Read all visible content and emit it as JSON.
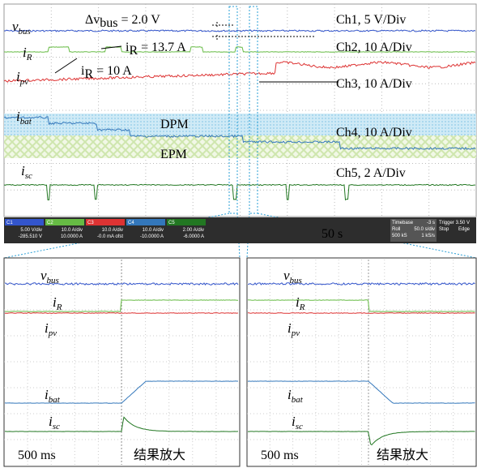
{
  "main": {
    "labels": [
      {
        "var": "v",
        "sub": "bus"
      },
      {
        "var": "i",
        "sub": "R"
      },
      {
        "var": "i",
        "sub": "pv"
      },
      {
        "var": "i",
        "sub": "bat"
      },
      {
        "var": "i",
        "sub": "sc"
      }
    ],
    "delta": {
      "pre": "Δ",
      "var": "v",
      "sub": "bus",
      "rest": " = 2.0 V"
    },
    "ir_high": {
      "var": "i",
      "sub": "R",
      "rest": " = 13.7 A"
    },
    "ir_low": {
      "var": "i",
      "sub": "R",
      "rest": " = 10 A"
    },
    "channels": [
      "Ch1, 5 V/Div",
      "Ch2, 10 A/Div",
      "Ch3, 10 A/Div",
      "Ch4, 10 A/Div",
      "Ch5, 2 A/Div"
    ],
    "dpm": "DPM",
    "epm": "EPM",
    "time": "50 s"
  },
  "status": {
    "channels": [
      {
        "name": "C1",
        "scale": "5.00 V/div",
        "offset": "-285.510 V"
      },
      {
        "name": "C2",
        "scale": "10.0 A/div",
        "offset": "10.0000 A"
      },
      {
        "name": "C3",
        "scale": "10.0 A/div",
        "offset": "-0.0 mA ofst"
      },
      {
        "name": "C4",
        "scale": "10.0 A/div",
        "offset": "-10.0000 A"
      },
      {
        "name": "C5",
        "scale": "2.00 A/div",
        "offset": "-6.0000 A"
      }
    ],
    "timebase": [
      "Timebase",
      "-3 s",
      "Roll",
      "50.0 s/div",
      "500 kS",
      "1 kS/s"
    ],
    "trigger": [
      "Trigger",
      "3.50 V",
      "Stop",
      "Edge"
    ]
  },
  "zoom": [
    {
      "labels": [
        {
          "var": "v",
          "sub": "bus"
        },
        {
          "var": "i",
          "sub": "R"
        },
        {
          "var": "i",
          "sub": "pv"
        },
        {
          "var": "i",
          "sub": "bat"
        },
        {
          "var": "i",
          "sub": "sc"
        }
      ],
      "time": "500 ms",
      "caption": "结果放大"
    },
    {
      "labels": [
        {
          "var": "v",
          "sub": "bus"
        },
        {
          "var": "i",
          "sub": "R"
        },
        {
          "var": "i",
          "sub": "pv"
        },
        {
          "var": "i",
          "sub": "bat"
        },
        {
          "var": "i",
          "sub": "sc"
        }
      ],
      "time": "500 ms",
      "caption": "结果放大"
    }
  ]
}
